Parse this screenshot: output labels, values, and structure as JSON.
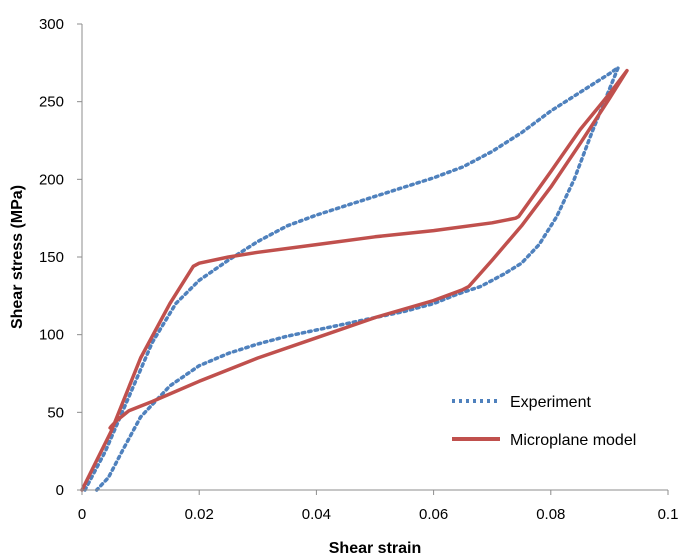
{
  "chart_data": {
    "type": "line",
    "title": "",
    "xlabel": "Shear strain",
    "ylabel": "Shear stress (MPa)",
    "xlim": [
      0,
      0.1
    ],
    "ylim": [
      0,
      300
    ],
    "x_ticks": [
      0,
      0.02,
      0.04,
      0.06,
      0.08,
      0.1
    ],
    "x_tick_labels": [
      "0",
      "0.02",
      "0.04",
      "0.06",
      "0.08",
      "0.1"
    ],
    "y_ticks": [
      0,
      50,
      100,
      150,
      200,
      250,
      300
    ],
    "y_tick_labels": [
      "0",
      "50",
      "100",
      "150",
      "200",
      "250",
      "300"
    ],
    "grid": false,
    "legend_position": "bottom-right",
    "series": [
      {
        "name": "Experiment",
        "color": "#4f81bd",
        "style": "dotted",
        "points": [
          [
            0.0005,
            0
          ],
          [
            0.004,
            25
          ],
          [
            0.008,
            60
          ],
          [
            0.012,
            95
          ],
          [
            0.016,
            120
          ],
          [
            0.02,
            135
          ],
          [
            0.025,
            148
          ],
          [
            0.03,
            160
          ],
          [
            0.035,
            170
          ],
          [
            0.04,
            177
          ],
          [
            0.045,
            183
          ],
          [
            0.05,
            189
          ],
          [
            0.055,
            195
          ],
          [
            0.06,
            201
          ],
          [
            0.065,
            208
          ],
          [
            0.07,
            218
          ],
          [
            0.075,
            230
          ],
          [
            0.08,
            244
          ],
          [
            0.085,
            256
          ],
          [
            0.09,
            268
          ],
          [
            0.0915,
            272
          ],
          [
            0.09,
            258
          ],
          [
            0.087,
            230
          ],
          [
            0.084,
            200
          ],
          [
            0.081,
            176
          ],
          [
            0.078,
            158
          ],
          [
            0.075,
            146
          ],
          [
            0.072,
            139
          ],
          [
            0.068,
            131
          ],
          [
            0.064,
            126
          ],
          [
            0.06,
            120
          ],
          [
            0.055,
            115
          ],
          [
            0.05,
            111
          ],
          [
            0.045,
            107
          ],
          [
            0.04,
            103
          ],
          [
            0.035,
            99
          ],
          [
            0.03,
            94
          ],
          [
            0.025,
            88
          ],
          [
            0.02,
            80
          ],
          [
            0.015,
            67
          ],
          [
            0.01,
            47
          ],
          [
            0.007,
            26
          ],
          [
            0.0045,
            8
          ],
          [
            0.0025,
            0
          ]
        ]
      },
      {
        "name": "Microplane model",
        "color": "#c0504d",
        "style": "solid",
        "points": [
          [
            0,
            0
          ],
          [
            0.005,
            38
          ],
          [
            0.01,
            85
          ],
          [
            0.015,
            120
          ],
          [
            0.019,
            144
          ],
          [
            0.02,
            146
          ],
          [
            0.025,
            150
          ],
          [
            0.03,
            153
          ],
          [
            0.04,
            158
          ],
          [
            0.05,
            163
          ],
          [
            0.06,
            167
          ],
          [
            0.07,
            172
          ],
          [
            0.074,
            175
          ],
          [
            0.0745,
            176
          ],
          [
            0.08,
            205
          ],
          [
            0.085,
            232
          ],
          [
            0.09,
            255
          ],
          [
            0.093,
            270
          ],
          [
            0.09,
            252
          ],
          [
            0.085,
            223
          ],
          [
            0.08,
            195
          ],
          [
            0.075,
            170
          ],
          [
            0.07,
            148
          ],
          [
            0.066,
            131
          ],
          [
            0.065,
            129
          ],
          [
            0.06,
            122
          ],
          [
            0.05,
            111
          ],
          [
            0.04,
            98
          ],
          [
            0.03,
            85
          ],
          [
            0.02,
            70
          ],
          [
            0.012,
            57
          ],
          [
            0.008,
            51
          ],
          [
            0.006,
            45
          ],
          [
            0.005,
            41
          ],
          [
            0.0048,
            40
          ]
        ]
      }
    ]
  }
}
